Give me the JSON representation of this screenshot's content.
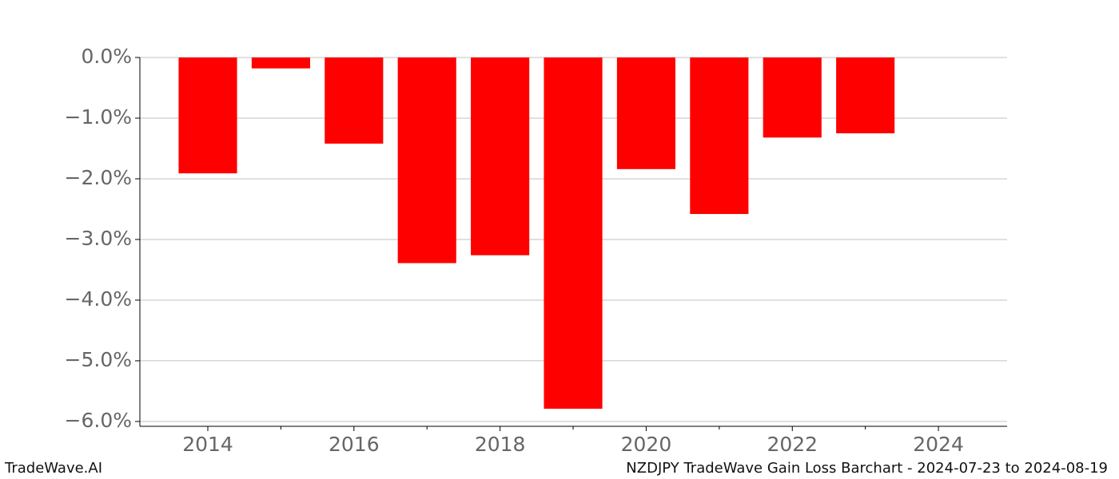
{
  "chart_data": {
    "type": "bar",
    "title": "NZDJPY TradeWave Gain Loss Barchart - 2024-07-23 to 2024-08-19",
    "watermark": "TradeWave.AI",
    "x": [
      2014,
      2015,
      2016,
      2017,
      2018,
      2019,
      2020,
      2021,
      2022,
      2023
    ],
    "values": [
      -1.91,
      -0.18,
      -1.42,
      -3.39,
      -3.26,
      -5.79,
      -1.84,
      -2.58,
      -1.32,
      -1.25
    ],
    "color": "#ff0000",
    "xlim": [
      2013.07,
      2024.94
    ],
    "xticks": [
      2014,
      2016,
      2018,
      2020,
      2022,
      2024
    ],
    "xminorticks": [
      2015,
      2017,
      2019,
      2021,
      2023
    ],
    "ylim": [
      -6.08,
      0
    ],
    "yticks": [
      {
        "value": 0,
        "label": "0.0%"
      },
      {
        "value": -1,
        "label": "−1.0%"
      },
      {
        "value": -2,
        "label": "−2.0%"
      },
      {
        "value": -3,
        "label": "−3.0%"
      },
      {
        "value": -4,
        "label": "−4.0%"
      },
      {
        "value": -5,
        "label": "−5.0%"
      },
      {
        "value": -6,
        "label": "−6.0%"
      }
    ],
    "grid": true
  }
}
